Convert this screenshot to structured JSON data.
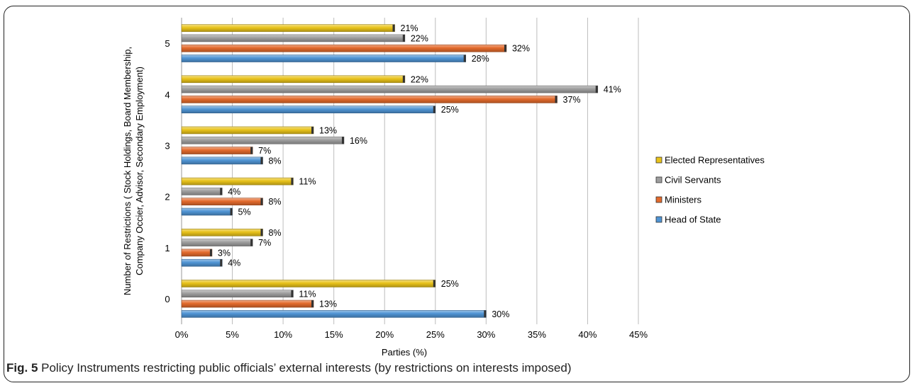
{
  "caption": {
    "prefix": "Fig. 5",
    "text": "Policy Instruments restricting public officials’ external interests (by restrictions on interests imposed)"
  },
  "colors": {
    "Head of State": "#4f94d4",
    "Ministers": "#e36a2c",
    "Civil Servants": "#9e9e9e",
    "Elected Representatives": "#e8c21a"
  },
  "chart_data": {
    "type": "bar",
    "orientation": "horizontal",
    "categories": [
      "0",
      "1",
      "2",
      "3",
      "4",
      "5"
    ],
    "series": [
      {
        "name": "Head of State",
        "values": [
          30,
          4,
          5,
          8,
          25,
          28
        ],
        "labels": [
          "30%",
          "4%",
          "5%",
          "8%",
          "25%",
          "28%"
        ]
      },
      {
        "name": "Ministers",
        "values": [
          13,
          3,
          8,
          7,
          37,
          32
        ],
        "labels": [
          "13%",
          "3%",
          "8%",
          "7%",
          "37%",
          "32%"
        ]
      },
      {
        "name": "Civil Servants",
        "values": [
          11,
          7,
          4,
          16,
          41,
          22
        ],
        "labels": [
          "11%",
          "7%",
          "4%",
          "16%",
          "41%",
          "22%"
        ]
      },
      {
        "name": "Elected Representatives",
        "values": [
          25,
          8,
          11,
          13,
          22,
          21
        ],
        "labels": [
          "25%",
          "8%",
          "11%",
          "13%",
          "22%",
          "21%"
        ]
      }
    ],
    "xlabel": "Parties (%)",
    "ylabel_lines": [
      "Number of Restrictions ( Stock Holdings, Board Membership,",
      "Company Occier, Advisor, Secondary Employment)"
    ],
    "xlim": [
      0,
      45
    ],
    "xticks": [
      "0%",
      "5%",
      "10%",
      "15%",
      "20%",
      "25%",
      "30%",
      "35%",
      "40%",
      "45%"
    ],
    "legend_order": [
      "Elected Representatives",
      "Civil Servants",
      "Ministers",
      "Head of State"
    ],
    "legend_position": "right",
    "grid": true
  }
}
